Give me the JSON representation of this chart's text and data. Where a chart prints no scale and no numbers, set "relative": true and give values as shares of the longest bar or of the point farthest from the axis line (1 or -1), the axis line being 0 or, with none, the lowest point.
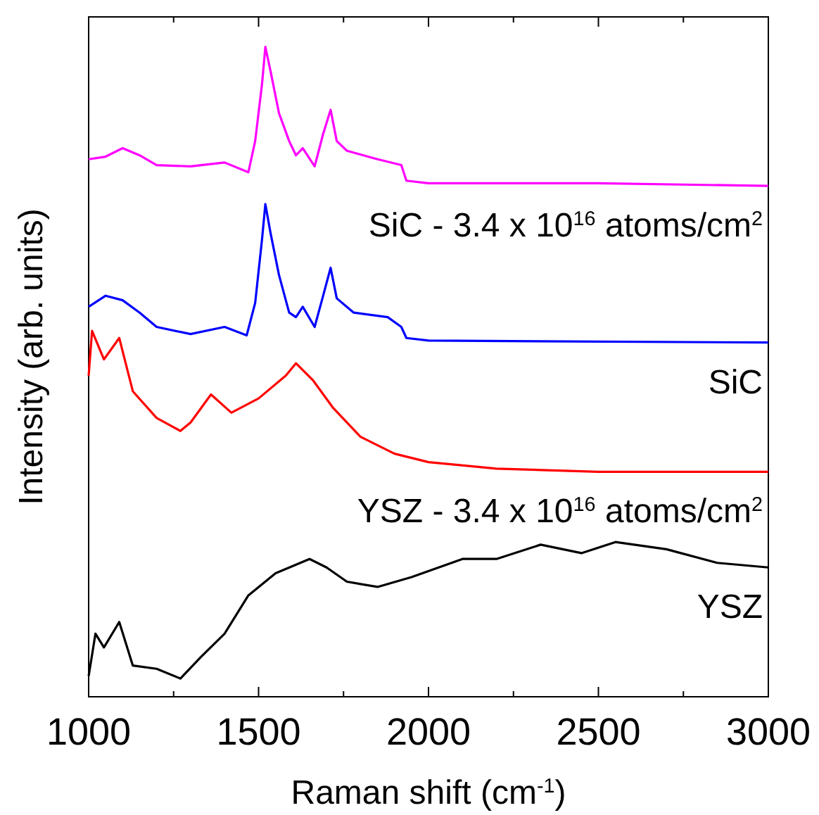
{
  "chart_data": {
    "type": "line",
    "relative": true,
    "xlabel": "Raman shift (cm$^{-1}$)",
    "ylabel": "Intensity (arb. units)",
    "xlim": [
      1000,
      3000
    ],
    "xticks": [
      1000,
      {
        "value": 1250,
        "label": null
      },
      1500,
      {
        "value": 1750,
        "label": null
      },
      2000,
      {
        "value": 2250,
        "label": null
      },
      2500,
      {
        "value": 2750,
        "label": null
      },
      3000
    ],
    "grid": false,
    "marker": "none",
    "line_style": "solid",
    "series": [
      {
        "name": "SiC - 3.4 x 10$^{16}$ atoms/cm$^{2}$",
        "color": "#ff00ff",
        "x": [
          1000,
          1050,
          1100,
          1150,
          1200,
          1300,
          1400,
          1470,
          1490,
          1510,
          1520,
          1535,
          1560,
          1590,
          1610,
          1630,
          1665,
          1690,
          1712,
          1730,
          1760,
          1850,
          1920,
          1935,
          2000,
          2500,
          3000
        ],
        "values": [
          0.827,
          0.831,
          0.844,
          0.833,
          0.818,
          0.816,
          0.822,
          0.807,
          0.855,
          0.942,
          1.0,
          0.963,
          0.898,
          0.855,
          0.833,
          0.844,
          0.816,
          0.866,
          0.903,
          0.855,
          0.84,
          0.827,
          0.818,
          0.794,
          0.79,
          0.79,
          0.786
        ]
      },
      {
        "name": "SiC",
        "color": "#0000ff",
        "x": [
          1000,
          1050,
          1100,
          1150,
          1200,
          1300,
          1400,
          1465,
          1490,
          1510,
          1520,
          1535,
          1560,
          1590,
          1610,
          1630,
          1665,
          1690,
          1712,
          1730,
          1780,
          1880,
          1920,
          1935,
          2000,
          3000
        ],
        "values": [
          0.6,
          0.617,
          0.61,
          0.591,
          0.569,
          0.558,
          0.569,
          0.556,
          0.606,
          0.703,
          0.758,
          0.714,
          0.649,
          0.591,
          0.584,
          0.6,
          0.569,
          0.617,
          0.66,
          0.613,
          0.591,
          0.584,
          0.569,
          0.552,
          0.548,
          0.545
        ]
      },
      {
        "name": "YSZ - 3.4 x 10$^{16}$ atoms/cm$^{2}$",
        "color": "#ff0000",
        "x": [
          1000,
          1010,
          1045,
          1090,
          1130,
          1200,
          1270,
          1300,
          1360,
          1420,
          1500,
          1580,
          1610,
          1660,
          1720,
          1800,
          1900,
          2000,
          2200,
          2500,
          3000
        ],
        "values": [
          0.494,
          0.563,
          0.519,
          0.552,
          0.47,
          0.429,
          0.409,
          0.422,
          0.465,
          0.437,
          0.459,
          0.494,
          0.513,
          0.487,
          0.444,
          0.4,
          0.374,
          0.361,
          0.351,
          0.346,
          0.346
        ]
      },
      {
        "name": "YSZ",
        "color": "#000000",
        "x": [
          1000,
          1020,
          1045,
          1090,
          1130,
          1200,
          1270,
          1330,
          1400,
          1470,
          1550,
          1650,
          1700,
          1760,
          1850,
          1950,
          2100,
          2200,
          2330,
          2450,
          2550,
          2700,
          2850,
          3000
        ],
        "values": [
          0.032,
          0.097,
          0.076,
          0.115,
          0.048,
          0.043,
          0.028,
          0.061,
          0.097,
          0.156,
          0.19,
          0.212,
          0.199,
          0.177,
          0.169,
          0.184,
          0.212,
          0.212,
          0.234,
          0.221,
          0.238,
          0.227,
          0.206,
          0.199
        ]
      }
    ]
  }
}
